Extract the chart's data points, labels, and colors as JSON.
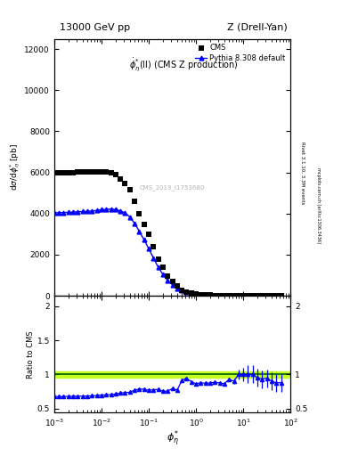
{
  "title_left": "13000 GeV pp",
  "title_right": "Z (Drell-Yan)",
  "right_label_top": "Rivet 3.1.10, 3.3M events",
  "right_label_bottom": "mcplots.cern.ch [arXiv:1306.3436]",
  "annotation": "CMS_2019_I1753680",
  "plot_label": "$\\dot{\\phi}_{\\eta}^{*}$(ll) (CMS Z production)",
  "ylabel_main": "d$\\sigma$/d$\\phi_{\\eta}^{*}$ [pb]",
  "ylabel_ratio": "Ratio to CMS",
  "xlabel": "$\\phi_{\\eta}^{*}$",
  "xlim": [
    0.001,
    100
  ],
  "ylim_main": [
    0,
    12500
  ],
  "ylim_ratio": [
    0.44,
    2.15
  ],
  "cms_x": [
    0.001,
    0.00126,
    0.00158,
    0.002,
    0.00251,
    0.00316,
    0.00398,
    0.00501,
    0.00631,
    0.00794,
    0.01,
    0.01259,
    0.01585,
    0.01995,
    0.02512,
    0.03162,
    0.03981,
    0.05012,
    0.0631,
    0.07943,
    0.1,
    0.12589,
    0.15849,
    0.19953,
    0.25119,
    0.31623,
    0.39811,
    0.50119,
    0.63096,
    0.79433,
    1.0,
    1.25893,
    1.58489,
    1.99526,
    2.51189,
    3.16228,
    3.98107,
    5.01187,
    6.30957,
    7.94328,
    10.0,
    12.5893,
    15.8489,
    19.9526,
    25.1189,
    31.6228,
    39.8107,
    50.1187,
    63.0957
  ],
  "cms_y": [
    5980,
    5980,
    5980,
    5990,
    5990,
    6010,
    6010,
    6010,
    6010,
    6010,
    6010,
    6010,
    5980,
    5880,
    5680,
    5480,
    5180,
    4580,
    3980,
    3480,
    2980,
    2380,
    1780,
    1380,
    980,
    680,
    480,
    280,
    185,
    140,
    95,
    65,
    46,
    32,
    22,
    16,
    11,
    7,
    5,
    3.5,
    2.5,
    1.8,
    1.3,
    1.0,
    0.75,
    0.55,
    0.42,
    0.32,
    0.25
  ],
  "pythia_x": [
    0.001,
    0.00126,
    0.00158,
    0.002,
    0.00251,
    0.00316,
    0.00398,
    0.00501,
    0.00631,
    0.00794,
    0.01,
    0.01259,
    0.01585,
    0.01995,
    0.02512,
    0.03162,
    0.03981,
    0.05012,
    0.0631,
    0.07943,
    0.1,
    0.12589,
    0.15849,
    0.19953,
    0.25119,
    0.31623,
    0.39811,
    0.50119,
    0.63096,
    0.79433,
    1.0,
    1.25893,
    1.58489,
    1.99526,
    2.51189,
    3.16228,
    3.98107,
    5.01187,
    6.30957,
    7.94328,
    10.0,
    12.5893,
    15.8489,
    19.9526,
    25.1189,
    31.6228,
    39.8107,
    50.1187,
    63.0957
  ],
  "pythia_y": [
    4040,
    4045,
    4050,
    4060,
    4070,
    4090,
    4100,
    4110,
    4130,
    4150,
    4190,
    4210,
    4215,
    4200,
    4130,
    4030,
    3830,
    3530,
    3130,
    2730,
    2290,
    1840,
    1390,
    1040,
    740,
    540,
    370,
    255,
    175,
    125,
    82,
    57,
    40,
    28,
    19.5,
    14,
    9.5,
    6.5,
    4.5,
    3.5,
    2.5,
    1.8,
    1.3,
    0.95,
    0.7,
    0.52,
    0.38,
    0.28,
    0.22
  ],
  "ratio_y": [
    0.676,
    0.676,
    0.677,
    0.678,
    0.68,
    0.681,
    0.682,
    0.683,
    0.687,
    0.691,
    0.698,
    0.701,
    0.705,
    0.715,
    0.727,
    0.735,
    0.739,
    0.77,
    0.786,
    0.784,
    0.768,
    0.774,
    0.781,
    0.754,
    0.755,
    0.794,
    0.771,
    0.91,
    0.946,
    0.893,
    0.863,
    0.877,
    0.87,
    0.875,
    0.886,
    0.875,
    0.864,
    0.929,
    0.9,
    1.0,
    1.0,
    1.0,
    1.0,
    0.95,
    0.933,
    0.945,
    0.905,
    0.875,
    0.88
  ],
  "ratio_err_low": [
    0.008,
    0.008,
    0.008,
    0.008,
    0.008,
    0.008,
    0.008,
    0.008,
    0.008,
    0.008,
    0.008,
    0.008,
    0.008,
    0.008,
    0.008,
    0.008,
    0.008,
    0.008,
    0.008,
    0.008,
    0.008,
    0.008,
    0.008,
    0.008,
    0.008,
    0.008,
    0.008,
    0.008,
    0.008,
    0.008,
    0.008,
    0.008,
    0.008,
    0.008,
    0.008,
    0.008,
    0.008,
    0.008,
    0.04,
    0.07,
    0.1,
    0.13,
    0.13,
    0.13,
    0.13,
    0.13,
    0.13,
    0.13,
    0.13
  ],
  "ratio_err_high": [
    0.008,
    0.008,
    0.008,
    0.008,
    0.008,
    0.008,
    0.008,
    0.008,
    0.008,
    0.008,
    0.008,
    0.008,
    0.008,
    0.008,
    0.008,
    0.008,
    0.008,
    0.008,
    0.008,
    0.008,
    0.008,
    0.008,
    0.008,
    0.008,
    0.008,
    0.008,
    0.008,
    0.008,
    0.008,
    0.008,
    0.008,
    0.008,
    0.008,
    0.008,
    0.008,
    0.008,
    0.008,
    0.008,
    0.04,
    0.07,
    0.1,
    0.13,
    0.13,
    0.13,
    0.13,
    0.13,
    0.13,
    0.13,
    0.13
  ],
  "cms_color": "black",
  "pythia_color": "blue",
  "ratio_band_color": "#bbff00",
  "ratio_line_color": "darkgreen",
  "background_color": "white",
  "yticks_main": [
    0,
    2000,
    4000,
    6000,
    8000,
    10000,
    12000
  ],
  "ytick_labels_main": [
    "0",
    "2000",
    "4000",
    "6000",
    "8000",
    "10000",
    "12000"
  ],
  "yticks_ratio": [
    0.5,
    1.0,
    1.5,
    2.0
  ],
  "ytick_labels_ratio": [
    "0.5",
    "1",
    "1.5",
    "2"
  ]
}
